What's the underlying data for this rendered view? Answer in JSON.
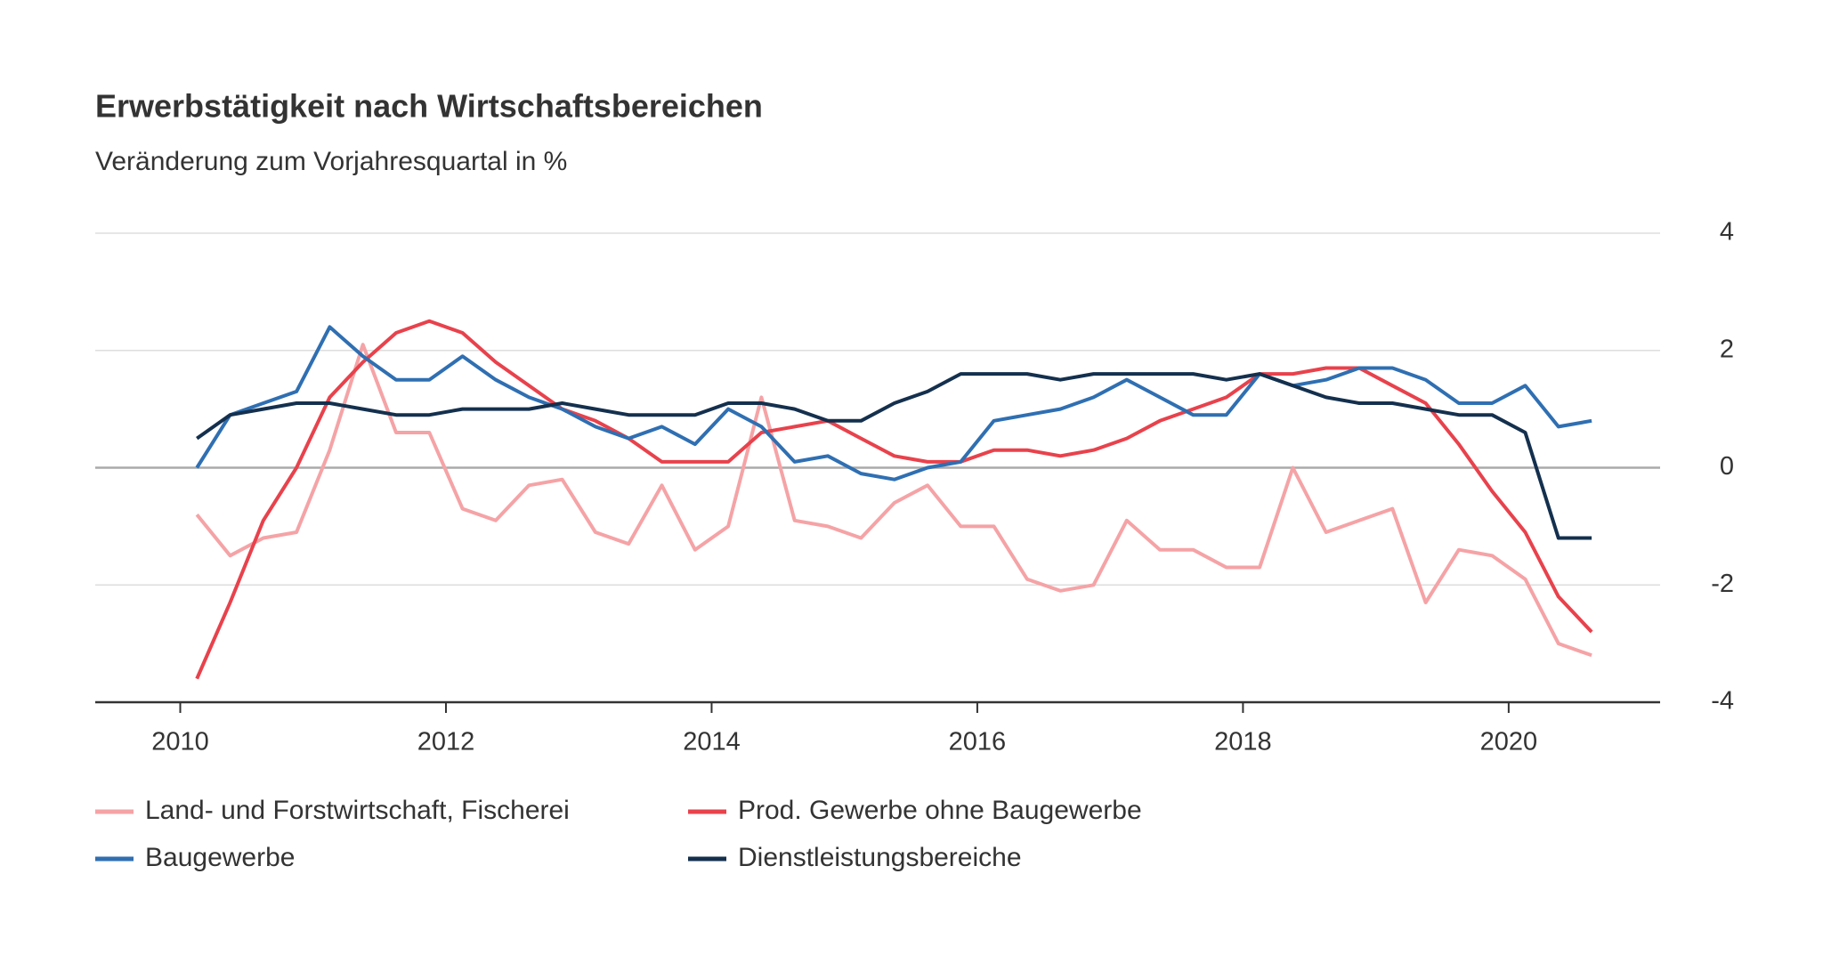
{
  "chart_data": {
    "type": "line",
    "title": "Erwerbstätigkeit nach Wirtschaftsbereichen",
    "subtitle": "Veränderung zum Vorjahresquartal in %",
    "x": [
      2010.125,
      2010.375,
      2010.625,
      2010.875,
      2011.125,
      2011.375,
      2011.625,
      2011.875,
      2012.125,
      2012.375,
      2012.625,
      2012.875,
      2013.125,
      2013.375,
      2013.625,
      2013.875,
      2014.125,
      2014.375,
      2014.625,
      2014.875,
      2015.125,
      2015.375,
      2015.625,
      2015.875,
      2016.125,
      2016.375,
      2016.625,
      2016.875,
      2017.125,
      2017.375,
      2017.625,
      2017.875,
      2018.125,
      2018.375,
      2018.625,
      2018.875,
      2019.125,
      2019.375,
      2019.625,
      2019.875,
      2020.125,
      2020.375,
      2020.625
    ],
    "series": [
      {
        "name": "Land- und Forstwirtschaft, Fischerei",
        "color": "#f5a3a6",
        "values": [
          -0.8,
          -1.5,
          -1.2,
          -1.1,
          0.3,
          2.1,
          0.6,
          0.6,
          -0.7,
          -0.9,
          -0.3,
          -0.2,
          -1.1,
          -1.3,
          -0.3,
          -1.4,
          -1.0,
          1.2,
          -0.9,
          -1.0,
          -1.2,
          -0.6,
          -0.3,
          -1.0,
          -1.0,
          -1.9,
          -2.1,
          -2.0,
          -0.9,
          -1.4,
          -1.4,
          -1.7,
          -1.7,
          0.0,
          -1.1,
          -0.9,
          -0.7,
          -2.3,
          -1.4,
          -1.5,
          -1.9,
          -3.0,
          -3.2
        ]
      },
      {
        "name": "Prod. Gewerbe ohne Baugewerbe",
        "color": "#e8424c",
        "values": [
          -3.6,
          -2.3,
          -0.9,
          0.0,
          1.2,
          1.8,
          2.3,
          2.5,
          2.3,
          1.8,
          1.4,
          1.0,
          0.8,
          0.5,
          0.1,
          0.1,
          0.1,
          0.6,
          0.7,
          0.8,
          0.5,
          0.2,
          0.1,
          0.1,
          0.3,
          0.3,
          0.2,
          0.3,
          0.5,
          0.8,
          1.0,
          1.2,
          1.6,
          1.6,
          1.7,
          1.7,
          1.4,
          1.1,
          0.4,
          -0.4,
          -1.1,
          -2.2,
          -2.8
        ]
      },
      {
        "name": "Baugewerbe",
        "color": "#2f6fb2",
        "values": [
          0.0,
          0.9,
          1.1,
          1.3,
          2.4,
          1.9,
          1.5,
          1.5,
          1.9,
          1.5,
          1.2,
          1.0,
          0.7,
          0.5,
          0.7,
          0.4,
          1.0,
          0.7,
          0.1,
          0.2,
          -0.1,
          -0.2,
          0.0,
          0.1,
          0.8,
          0.9,
          1.0,
          1.2,
          1.5,
          1.2,
          0.9,
          0.9,
          1.6,
          1.4,
          1.5,
          1.7,
          1.7,
          1.5,
          1.1,
          1.1,
          1.4,
          0.7,
          0.8
        ]
      },
      {
        "name": "Dienstleistungsbereiche",
        "color": "#14304e",
        "values": [
          0.5,
          0.9,
          1.0,
          1.1,
          1.1,
          1.0,
          0.9,
          0.9,
          1.0,
          1.0,
          1.0,
          1.1,
          1.0,
          0.9,
          0.9,
          0.9,
          1.1,
          1.1,
          1.0,
          0.8,
          0.8,
          1.1,
          1.3,
          1.6,
          1.6,
          1.6,
          1.5,
          1.6,
          1.6,
          1.6,
          1.6,
          1.5,
          1.6,
          1.4,
          1.2,
          1.1,
          1.1,
          1.0,
          0.9,
          0.9,
          0.6,
          -1.2,
          -1.2
        ]
      }
    ],
    "xlim": [
      2009.36,
      2021.14
    ],
    "xticks": [
      2010,
      2012,
      2014,
      2016,
      2018,
      2020
    ],
    "ylim": [
      -4,
      4
    ],
    "yticks": [
      4,
      2,
      0,
      -2,
      -4
    ],
    "grid": true
  }
}
